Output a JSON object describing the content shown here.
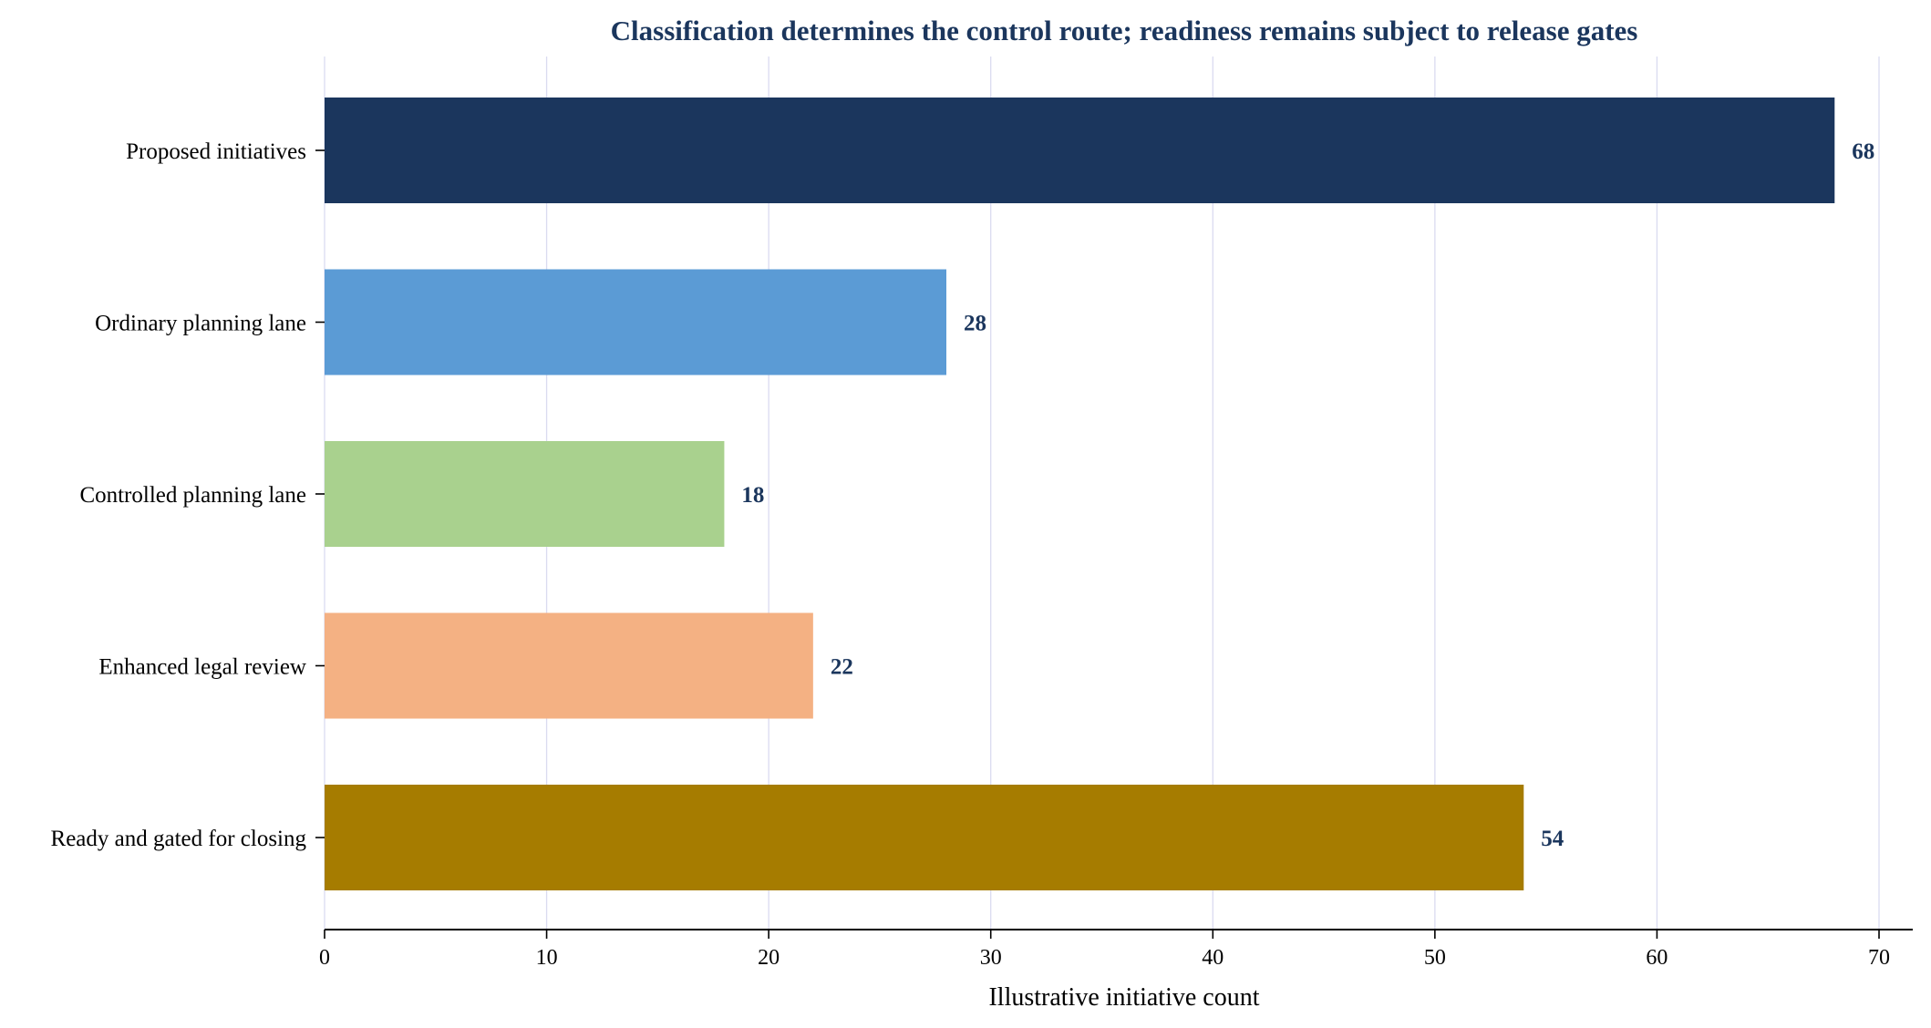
{
  "chart_data": {
    "type": "bar",
    "orientation": "horizontal",
    "title": "Classification determines the control route; readiness remains subject to release gates",
    "xlabel": "Illustrative initiative count",
    "ylabel": "",
    "categories": [
      "Proposed initiatives",
      "Ordinary planning lane",
      "Controlled planning lane",
      "Enhanced legal review",
      "Ready and gated for closing"
    ],
    "values": [
      68,
      28,
      18,
      22,
      54
    ],
    "data_labels": [
      "68",
      "28",
      "18",
      "22",
      "54"
    ],
    "bar_colors": [
      "#1b365d",
      "#5b9bd5",
      "#a9d18e",
      "#f4b183",
      "#a67c00"
    ],
    "xlim": [
      0,
      70
    ],
    "xticks": [
      0,
      10,
      20,
      30,
      40,
      50,
      60,
      70
    ],
    "xtick_labels": [
      "0",
      "10",
      "20",
      "30",
      "40",
      "50",
      "60",
      "70"
    ],
    "grid": "vertical",
    "legend": "none"
  },
  "colors": {
    "title": "#1b365d",
    "data_label": "#1b365d",
    "gridline": "#dadbf0",
    "axis": "#000000",
    "background": "#ffffff"
  }
}
